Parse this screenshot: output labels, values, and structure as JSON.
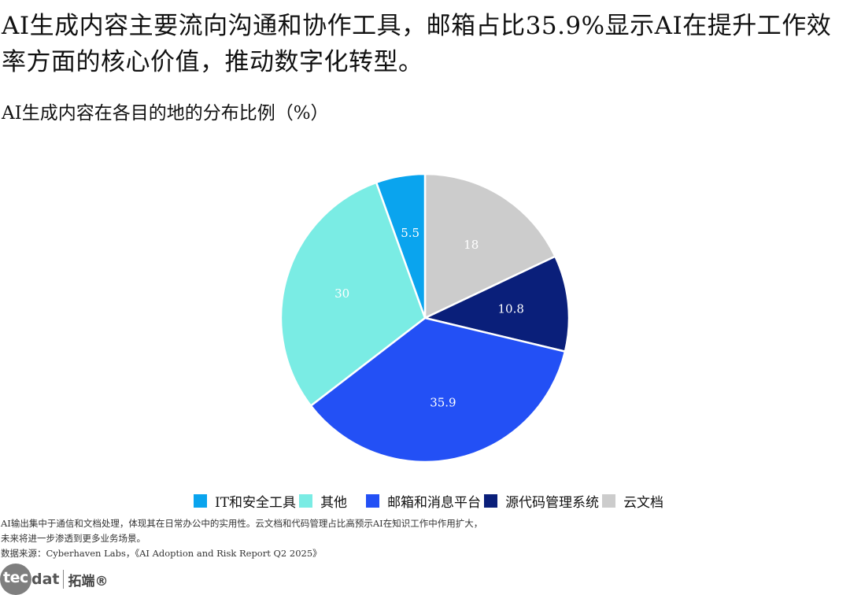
{
  "headline": "AI生成内容主要流向沟通和协作工具，邮箱占比35.9%显示AI在提升工作效率方面的核心价值，推动数字化转型。",
  "chart_data": {
    "type": "pie",
    "title": "AI生成内容在各目的地的分布比例（%）",
    "slices": [
      {
        "label": "云文档",
        "value": 18,
        "color": "#cccccc",
        "label_color": "#ffffff"
      },
      {
        "label": "源代码管理系统",
        "value": 10.8,
        "color": "#0a1f7a",
        "label_color": "#ffffff"
      },
      {
        "label": "邮箱和消息平台",
        "value": 35.9,
        "color": "#2350f5",
        "label_color": "#ffffff"
      },
      {
        "label": "其他",
        "value": 30,
        "color": "#7aece4",
        "label_color": "#ffffff"
      },
      {
        "label": "IT和安全工具",
        "value": 5.5,
        "color": "#0aa4ee",
        "label_color": "#ffffff"
      }
    ],
    "legend": [
      "IT和安全工具",
      "其他",
      "邮箱和消息平台",
      "源代码管理系统",
      "云文档"
    ],
    "legend_position": "bottom"
  },
  "notes": [
    "AI输出集中于通信和文档处理，体现其在日常办公中的实用性。云文档和代码管理占比高预示AI在知识工作中作用扩大，",
    "未来将进一步渗透到更多业务场景。",
    "数据来源：Cyberhaven Labs，《AI Adoption and Risk Report Q2 2025》"
  ],
  "brand": {
    "mark": "tec",
    "text": "dat",
    "cn": "拓端®"
  }
}
